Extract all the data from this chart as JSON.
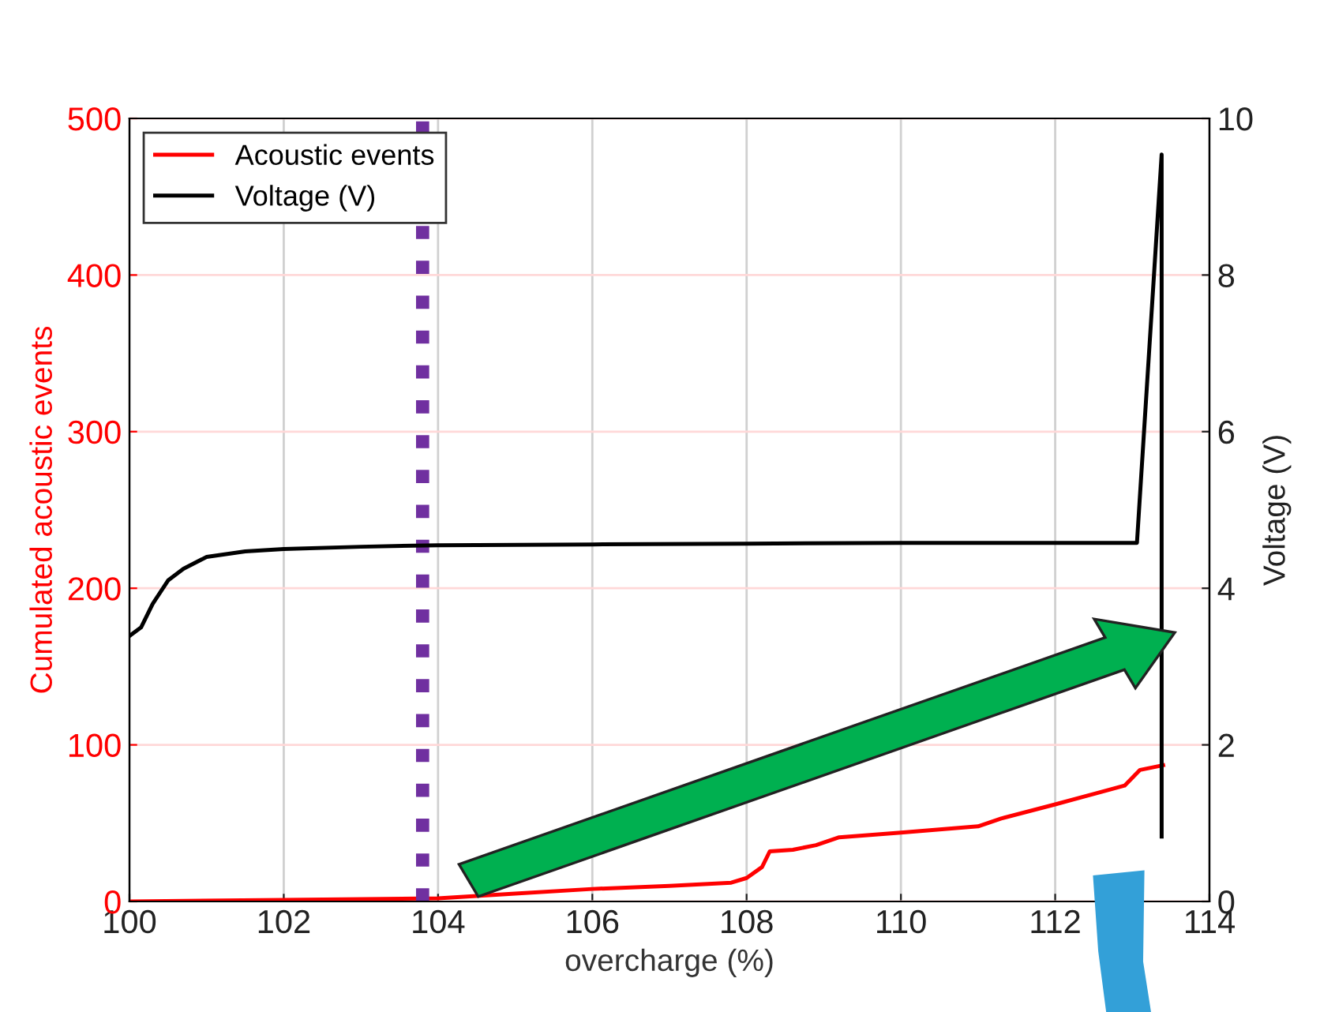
{
  "chart_data": {
    "type": "line",
    "xlabel": "overcharge (%)",
    "ylabel": "Cumulated acoustic events",
    "y2label": "Voltage (V)",
    "series": [
      {
        "name": "Acoustic events",
        "color": "#ff0000",
        "x": [
          100,
          102,
          104,
          105,
          106,
          107,
          107.8,
          108.0,
          108.2,
          108.3,
          108.6,
          108.9,
          109.2,
          110,
          111,
          111.3,
          112,
          112.6,
          112.9,
          113.1,
          113.4
        ],
        "values": [
          0,
          1,
          2,
          5,
          8,
          10,
          12,
          15,
          22,
          32,
          33,
          36,
          41,
          44,
          48,
          53,
          62,
          70,
          74,
          84,
          87
        ]
      },
      {
        "name": "Voltage (V)",
        "color": "#000000",
        "axis": "y2",
        "x": [
          100,
          100.15,
          100.3,
          100.5,
          100.7,
          101,
          101.5,
          102,
          103,
          104,
          106,
          108,
          110,
          113.06,
          113.38,
          113.38
        ],
        "values": [
          3.39,
          3.5,
          3.8,
          4.1,
          4.25,
          4.4,
          4.47,
          4.5,
          4.53,
          4.55,
          4.56,
          4.57,
          4.58,
          4.58,
          9.54,
          0.83
        ]
      }
    ],
    "xlim": [
      100,
      114
    ],
    "xticks": [
      100,
      102,
      104,
      106,
      108,
      110,
      112,
      114
    ],
    "ylim": [
      0,
      500
    ],
    "yticks": [
      0,
      100,
      200,
      300,
      400,
      500
    ],
    "y2lim": [
      0,
      10
    ],
    "y2ticks": [
      0,
      2,
      4,
      6,
      8,
      10
    ],
    "ref_lines": [
      {
        "axis": "x",
        "value": 103.8,
        "label": null,
        "color": "#7030a0",
        "line_style": "dotted"
      }
    ],
    "grid": true,
    "legend": "top left",
    "line_style": "solid",
    "marker": "none"
  }
}
